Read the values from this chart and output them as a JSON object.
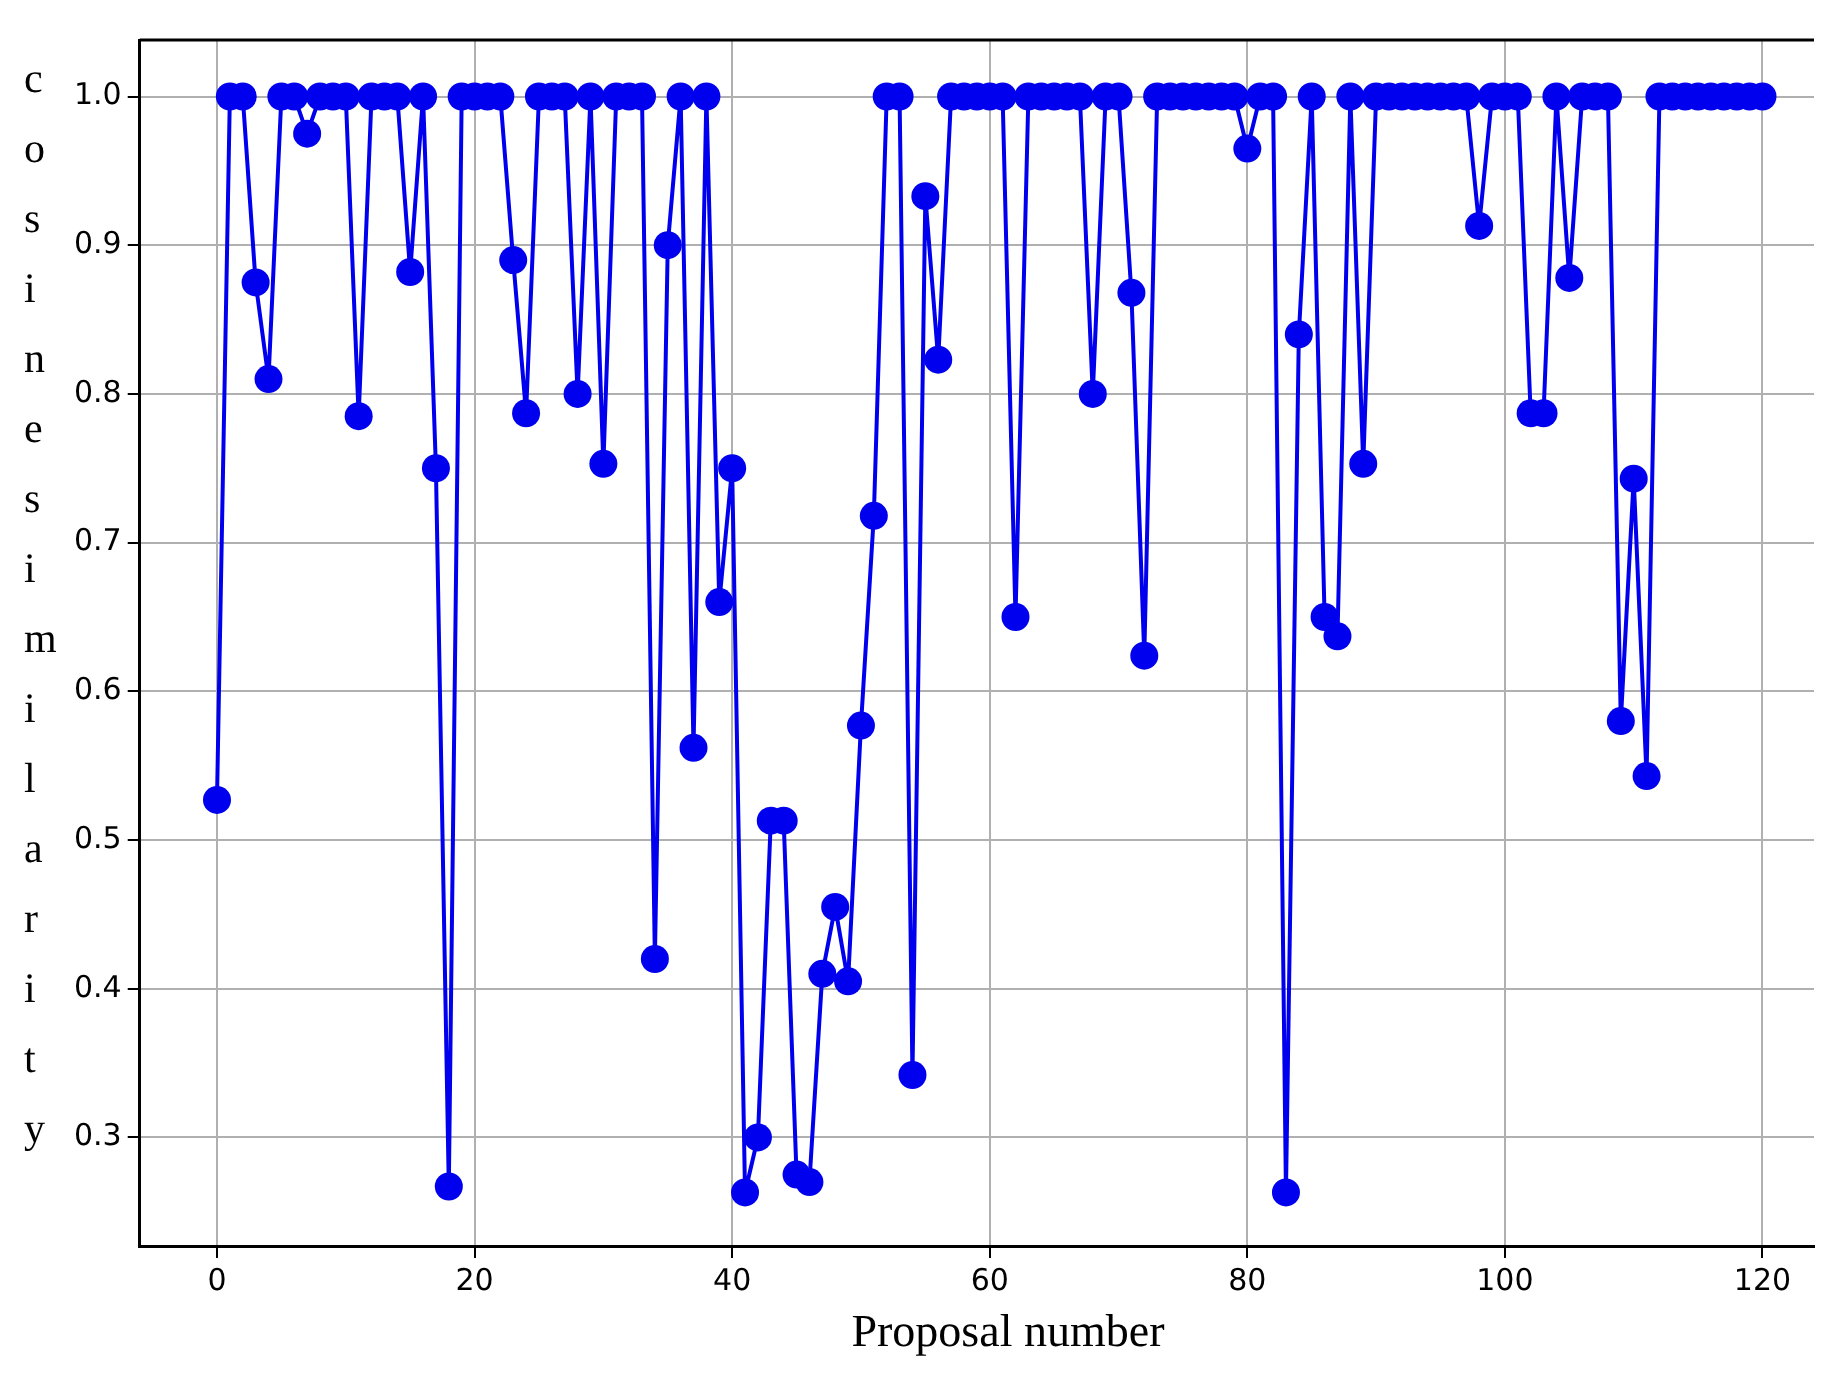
{
  "chart_data": {
    "type": "line",
    "xlabel": "Proposal number",
    "ylabel": "cosine similarity",
    "xlim": [
      -6,
      124
    ],
    "ylim": [
      0.227,
      1.038
    ],
    "xticks": [
      0,
      20,
      40,
      60,
      80,
      100,
      120
    ],
    "yticks": [
      0.3,
      0.4,
      0.5,
      0.6,
      0.7,
      0.8,
      0.9,
      {
        "value": 1,
        "label": "1.0"
      }
    ],
    "grid": true,
    "marker": "circle",
    "line_style": "solid",
    "x": [
      0,
      1,
      2,
      3,
      4,
      5,
      6,
      7,
      8,
      9,
      10,
      11,
      12,
      13,
      14,
      15,
      16,
      17,
      18,
      19,
      20,
      21,
      22,
      23,
      24,
      25,
      26,
      27,
      28,
      29,
      30,
      31,
      32,
      33,
      34,
      35,
      36,
      37,
      38,
      39,
      40,
      41,
      42,
      43,
      44,
      45,
      46,
      47,
      48,
      49,
      50,
      51,
      52,
      53,
      54,
      55,
      56,
      57,
      58,
      59,
      60,
      61,
      62,
      63,
      64,
      65,
      66,
      67,
      68,
      69,
      70,
      71,
      72,
      73,
      74,
      75,
      76,
      77,
      78,
      79,
      80,
      81,
      82,
      83,
      84,
      85,
      86,
      87,
      88,
      89,
      90,
      91,
      92,
      93,
      94,
      95,
      96,
      97,
      98,
      99,
      100,
      101,
      102,
      103,
      104,
      105,
      106,
      107,
      108,
      109,
      110,
      111,
      112,
      113,
      114,
      115,
      116,
      117,
      118,
      119,
      120
    ],
    "series": [
      {
        "color": "#0000ee",
        "values": [
          0.527,
          1,
          1,
          0.875,
          0.81,
          1,
          1,
          0.975,
          1,
          1,
          1,
          0.785,
          1,
          1,
          1,
          0.882,
          1,
          0.75,
          0.267,
          1,
          1,
          1,
          1,
          0.89,
          0.787,
          1,
          1,
          1,
          0.8,
          1,
          0.753,
          1,
          1,
          1,
          0.42,
          0.9,
          1,
          0.562,
          1,
          0.66,
          0.75,
          0.263,
          0.3,
          0.513,
          0.513,
          0.275,
          0.27,
          0.41,
          0.455,
          0.405,
          0.577,
          0.718,
          1,
          1,
          0.342,
          0.933,
          0.823,
          1,
          1,
          1,
          1,
          1,
          0.65,
          1,
          1,
          1,
          1,
          1,
          0.8,
          1,
          1,
          0.868,
          0.624,
          1,
          1,
          1,
          1,
          1,
          1,
          1,
          0.965,
          1,
          1,
          0.263,
          0.84,
          1,
          0.65,
          0.637,
          1,
          0.753,
          1,
          1,
          1,
          1,
          1,
          1,
          1,
          1,
          0.913,
          1,
          1,
          1,
          0.787,
          0.787,
          1,
          0.878,
          1,
          1,
          1,
          0.58,
          0.743,
          0.543,
          1,
          1,
          1,
          1,
          1,
          1,
          1,
          1,
          1
        ]
      }
    ]
  }
}
